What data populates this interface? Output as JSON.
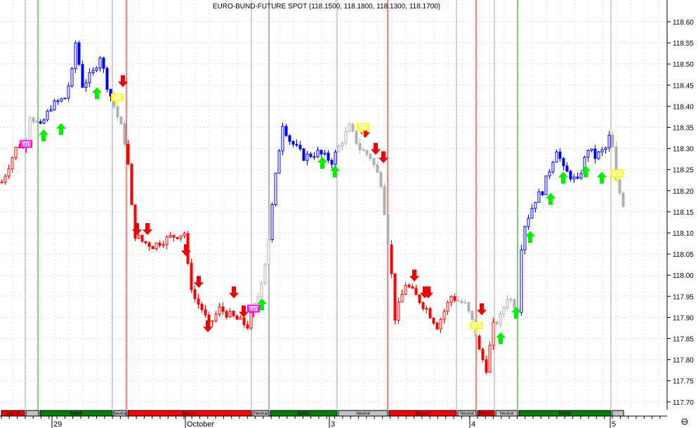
{
  "chart_data": {
    "type": "candlestick",
    "title": "EURO-BUND-FUTURE SPOT (118.1500, 118.1800, 118.1300, 118.1700)",
    "ylim": [
      117.675,
      118.65
    ],
    "yticks": [
      "118.60",
      "118.55",
      "118.50",
      "118.45",
      "118.40",
      "118.35",
      "118.30",
      "118.25",
      "118.20",
      "118.15",
      "118.10",
      "118.05",
      "118.00",
      "117.95",
      "117.90",
      "117.85",
      "117.80",
      "117.75",
      "117.70"
    ],
    "xticks": [
      {
        "bar": 15,
        "label": "29"
      },
      {
        "bar": 53,
        "label": "October"
      },
      {
        "bar": 94,
        "label": "3"
      },
      {
        "bar": 134,
        "label": "4"
      },
      {
        "bar": 174,
        "label": "5"
      }
    ],
    "grid": true,
    "price_path": [
      [
        0,
        118.22
      ],
      [
        4,
        118.3
      ],
      [
        7,
        118.32
      ],
      [
        8,
        118.38
      ],
      [
        11,
        118.35
      ],
      [
        14,
        118.4
      ],
      [
        18,
        118.42
      ],
      [
        20,
        118.48
      ],
      [
        21,
        118.55
      ],
      [
        23,
        118.45
      ],
      [
        26,
        118.48
      ],
      [
        28,
        118.52
      ],
      [
        30,
        118.45
      ],
      [
        32,
        118.4
      ],
      [
        34,
        118.35
      ],
      [
        35.5,
        118.3
      ],
      [
        36.5,
        118.22
      ],
      [
        37.5,
        118.1
      ],
      [
        40,
        118.08
      ],
      [
        43,
        118.07
      ],
      [
        48,
        118.09
      ],
      [
        52,
        118.1
      ],
      [
        53,
        118.02
      ],
      [
        54.5,
        117.95
      ],
      [
        57,
        117.92
      ],
      [
        59,
        117.88
      ],
      [
        62,
        117.92
      ],
      [
        66,
        117.9
      ],
      [
        70,
        117.88
      ],
      [
        73,
        117.95
      ],
      [
        75.5,
        118.05
      ],
      [
        77.5,
        118.2
      ],
      [
        79,
        118.3
      ],
      [
        80,
        118.36
      ],
      [
        82,
        118.32
      ],
      [
        86,
        118.28
      ],
      [
        90,
        118.29
      ],
      [
        94,
        118.27
      ],
      [
        97,
        118.32
      ],
      [
        99,
        118.35
      ],
      [
        102,
        118.3
      ],
      [
        105,
        118.28
      ],
      [
        108,
        118.22
      ],
      [
        109.5,
        118.12
      ],
      [
        111,
        118.0
      ],
      [
        112,
        117.9
      ],
      [
        115,
        117.98
      ],
      [
        118,
        117.95
      ],
      [
        121,
        117.92
      ],
      [
        124,
        117.88
      ],
      [
        128,
        117.95
      ],
      [
        132,
        117.93
      ],
      [
        134.5,
        117.88
      ],
      [
        136,
        117.82
      ],
      [
        138,
        117.78
      ],
      [
        140,
        117.88
      ],
      [
        142,
        117.9
      ],
      [
        144,
        117.95
      ],
      [
        147,
        117.92
      ],
      [
        147.6,
        118.05
      ],
      [
        149,
        118.12
      ],
      [
        152,
        118.18
      ],
      [
        154,
        118.2
      ],
      [
        156,
        118.25
      ],
      [
        158,
        118.3
      ],
      [
        160,
        118.25
      ],
      [
        164,
        118.22
      ],
      [
        167,
        118.3
      ],
      [
        169,
        118.28
      ],
      [
        172,
        118.3
      ],
      [
        173.5,
        118.34
      ],
      [
        175,
        118.22
      ],
      [
        177,
        118.17
      ]
    ],
    "regime_bar": [
      {
        "from": 0,
        "to": 7,
        "label": "Bearish",
        "color": "#ff0000"
      },
      {
        "from": 7,
        "to": 11,
        "label": "",
        "color": "#c0c0c0"
      },
      {
        "from": 11,
        "to": 32,
        "label": "Bullish",
        "color": "#008000"
      },
      {
        "from": 32,
        "to": 36,
        "label": "Neutral",
        "color": "#c0c0c0"
      },
      {
        "from": 36,
        "to": 71.6,
        "label": "Bearish",
        "color": "#ff0000"
      },
      {
        "from": 71.6,
        "to": 76.6,
        "label": "Neutral",
        "color": "#c0c0c0"
      },
      {
        "from": 76.6,
        "to": 96,
        "label": "Bullish",
        "color": "#008000"
      },
      {
        "from": 96,
        "to": 110.4,
        "label": "Neutral",
        "color": "#c0c0c0"
      },
      {
        "from": 110.4,
        "to": 130,
        "label": "Bearish",
        "color": "#ff0000"
      },
      {
        "from": 130,
        "to": 135.6,
        "label": "Neutral",
        "color": "#c0c0c0"
      },
      {
        "from": 135.6,
        "to": 140.8,
        "label": "Bearish",
        "color": "#ff0000"
      },
      {
        "from": 140.8,
        "to": 147.4,
        "label": "Neutral",
        "color": "#c0c0c0"
      },
      {
        "from": 147.4,
        "to": 174,
        "label": "Bullish",
        "color": "#008000"
      },
      {
        "from": 174,
        "to": 177.6,
        "label": "",
        "color": "#c0c0c0"
      }
    ],
    "signals_up": [
      [
        12.4,
        118.33
      ],
      [
        17.4,
        118.345
      ],
      [
        27.6,
        118.43
      ],
      [
        74.6,
        117.93
      ],
      [
        91.8,
        118.265
      ],
      [
        95.4,
        118.245
      ],
      [
        142.6,
        117.85
      ],
      [
        147,
        117.91
      ],
      [
        151,
        118.09
      ],
      [
        156.8,
        118.18
      ],
      [
        160.4,
        118.23
      ],
      [
        166.8,
        118.245
      ],
      [
        171.4,
        118.23
      ]
    ],
    "signals_down": [
      [
        35,
        118.46
      ],
      [
        39,
        118.11
      ],
      [
        42,
        118.11
      ],
      [
        53,
        118.06
      ],
      [
        56.6,
        117.985
      ],
      [
        59.2,
        117.88
      ],
      [
        66.6,
        117.96
      ],
      [
        69.4,
        117.915
      ],
      [
        104,
        118.34
      ],
      [
        107,
        118.3
      ],
      [
        109.2,
        118.28
      ],
      [
        118,
        118.0
      ],
      [
        121,
        117.96
      ],
      [
        122,
        117.96
      ],
      [
        137.2,
        117.92
      ]
    ],
    "exits": [
      {
        "bar": 7.4,
        "price": 118.31,
        "color": "#ff00ff",
        "label": "EXIT"
      },
      {
        "bar": 72.2,
        "price": 117.92,
        "color": "#ff00ff",
        "label": "EXIT"
      },
      {
        "bar": 33.4,
        "price": 118.42,
        "color": "#ffff00",
        "label": "EXIT"
      },
      {
        "bar": 103.4,
        "price": 118.35,
        "color": "#ffff00",
        "label": "EXIT"
      },
      {
        "bar": 135.6,
        "price": 117.88,
        "color": "#ffff00",
        "label": "EXIT"
      },
      {
        "bar": 175.6,
        "price": 118.24,
        "color": "#ffff00",
        "label": "EXIT"
      }
    ],
    "session_lines": [
      {
        "bar": 7.2,
        "color": "#a0a0a0"
      },
      {
        "bar": 10.8,
        "color": "#00a000"
      },
      {
        "bar": 32,
        "color": "#a0a0a0"
      },
      {
        "bar": 36,
        "color": "#ff0000"
      },
      {
        "bar": 71.6,
        "color": "#a0a0a0"
      },
      {
        "bar": 76.6,
        "color": "#507050"
      },
      {
        "bar": 96,
        "color": "#a0a0a0"
      },
      {
        "bar": 110.4,
        "color": "#ff0000"
      },
      {
        "bar": 130,
        "color": "#a0a0a0"
      },
      {
        "bar": 135.6,
        "color": "#ff0000"
      },
      {
        "bar": 140.8,
        "color": "#a0a0a0"
      },
      {
        "bar": 147.4,
        "color": "#00a000"
      },
      {
        "bar": 174,
        "color": "#a0a0a0"
      }
    ],
    "colors": {
      "bullish": "#0000ff",
      "bearish": "#ff0000",
      "neutral": "#b0b0b0",
      "up_arrow": "#00ee00",
      "down_arrow": "#ee0000"
    }
  }
}
